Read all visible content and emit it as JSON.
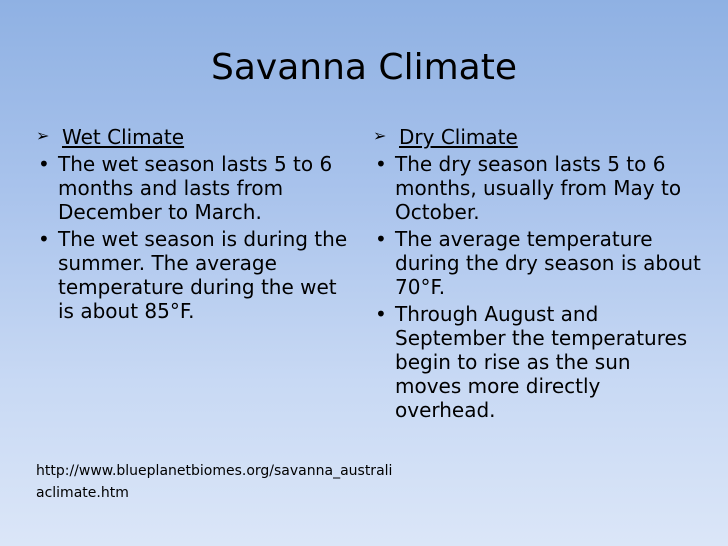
{
  "title": "Savanna Climate",
  "left_column": {
    "heading": "Wet Climate",
    "heading_icon": "arrowhead-bullet",
    "bullets": [
      "The wet season lasts 5 to 6 months and lasts from December to March.",
      "The wet season is during the summer. The average temperature during the wet is about 85°F."
    ]
  },
  "right_column": {
    "heading": "Dry Climate",
    "heading_icon": "arrowhead-bullet",
    "bullets": [
      "The dry season lasts 5 to 6 months, usually from May to October.",
      "The average temperature during the dry season is about 70°F.",
      "Through August and September the temperatures begin to rise as the sun moves more directly overhead."
    ]
  },
  "source": "http://www.blueplanetbiomes.org/savanna_australiaclimate.htm",
  "colors": {
    "background_top": "#8fb1e3",
    "background_bottom": "#dbe6f8",
    "text": "#000000"
  }
}
